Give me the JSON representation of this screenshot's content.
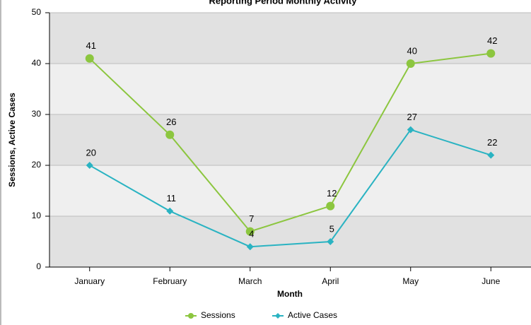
{
  "chart_data": {
    "type": "line",
    "title": "Reporting Period Monthly Activity",
    "x_label": "Month",
    "y_label": "Sessions, Active Cases",
    "categories": [
      "January",
      "February",
      "March",
      "April",
      "May",
      "June"
    ],
    "series": [
      {
        "name": "Sessions",
        "color": "#8cc63f",
        "values": [
          41,
          26,
          7,
          12,
          40,
          42
        ]
      },
      {
        "name": "Active Cases",
        "color": "#2ab3c2",
        "values": [
          20,
          11,
          4,
          5,
          27,
          22
        ]
      }
    ],
    "ylim": [
      0,
      50
    ],
    "yticks": [
      0,
      10,
      20,
      30,
      40,
      50
    ],
    "grid": true,
    "legend": "bottom"
  }
}
